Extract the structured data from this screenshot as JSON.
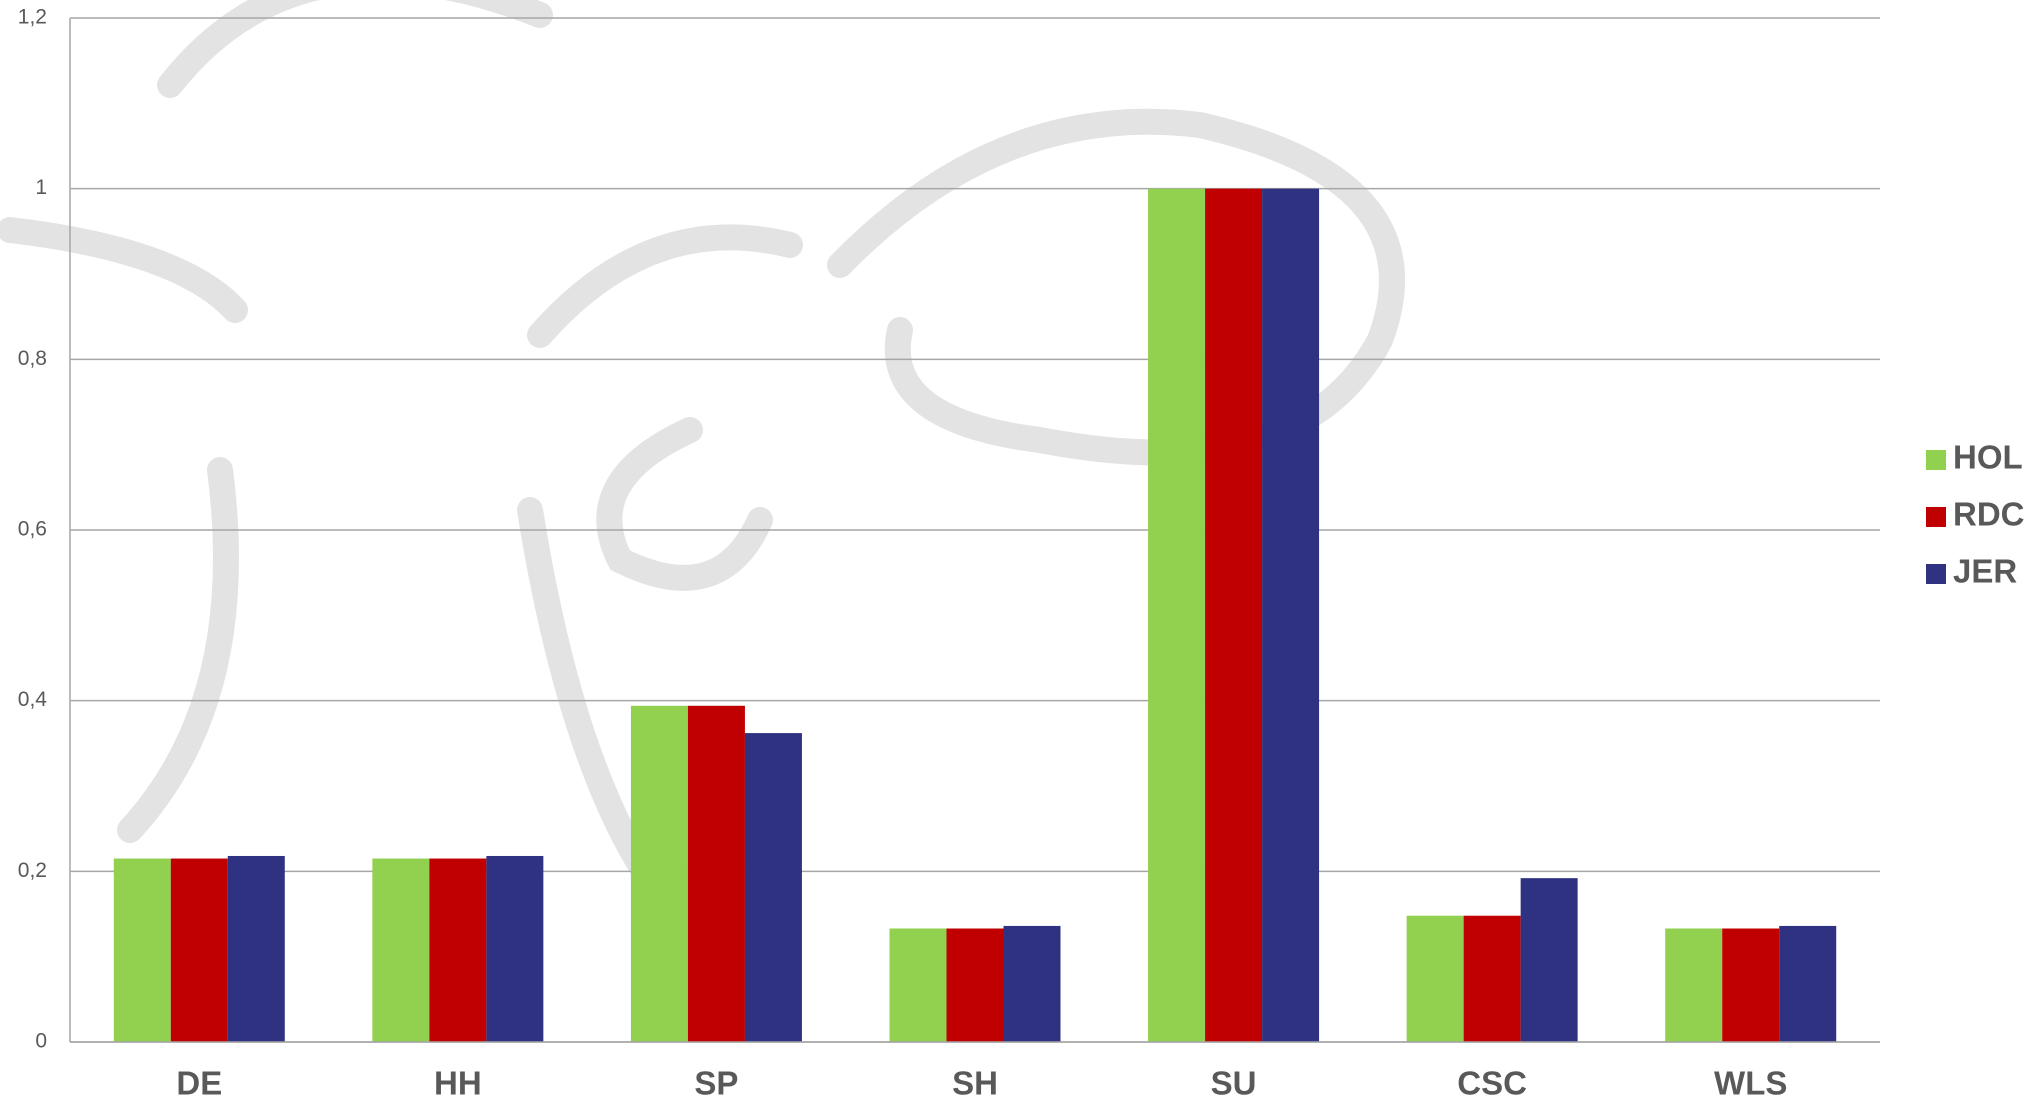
{
  "chart_data": {
    "type": "bar",
    "categories": [
      "DE",
      "HH",
      "SP",
      "SH",
      "SU",
      "CSC",
      "WLS"
    ],
    "series": [
      {
        "name": "HOL",
        "color": "#92d050",
        "values": [
          0.215,
          0.215,
          0.394,
          0.133,
          1,
          0.148,
          0.133
        ]
      },
      {
        "name": "RDC",
        "color": "#c00000",
        "values": [
          0.215,
          0.215,
          0.394,
          0.133,
          1,
          0.148,
          0.133
        ]
      },
      {
        "name": "JER",
        "color": "#2e3280",
        "values": [
          0.218,
          0.218,
          0.362,
          0.136,
          1,
          0.192,
          0.136
        ]
      }
    ],
    "ylim": [
      0,
      1.2
    ],
    "yticks": [
      0,
      {
        "value": 0.2,
        "label": "0,2"
      },
      {
        "value": 0.4,
        "label": "0,4"
      },
      {
        "value": 0.6,
        "label": "0,6"
      },
      {
        "value": 0.8,
        "label": "0,8"
      },
      1,
      {
        "value": 1.2,
        "label": "1,2"
      }
    ],
    "grid": true,
    "legend": "right"
  }
}
